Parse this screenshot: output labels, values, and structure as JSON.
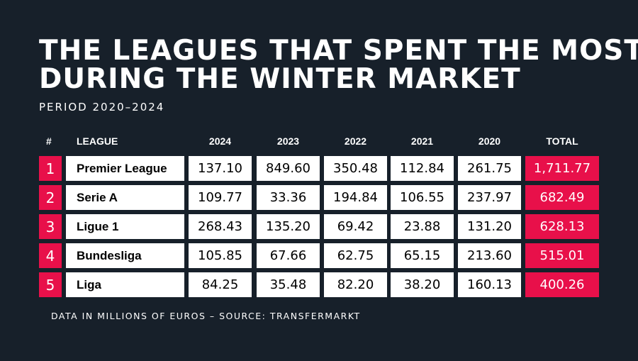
{
  "colors": {
    "background": "#17202a",
    "accent": "#e8104a",
    "cell": "#ffffff",
    "text_dark": "#000000",
    "text_light": "#ffffff"
  },
  "chart_data": {
    "type": "table",
    "title_lines": [
      "THE LEAGUES THAT SPENT THE MOST",
      "DURING THE WINTER MARKET"
    ],
    "subtitle": "PERIOD 2020–2024",
    "headers": [
      "#",
      "LEAGUE",
      "2024",
      "2023",
      "2022",
      "2021",
      "2020",
      "TOTAL"
    ],
    "rows": [
      {
        "rank": "1",
        "league": "Premier League",
        "values": [
          "137.10",
          "849.60",
          "350.48",
          "112.84",
          "261.75"
        ],
        "total": "1,711.77"
      },
      {
        "rank": "2",
        "league": "Serie A",
        "values": [
          "109.77",
          "33.36",
          "194.84",
          "106.55",
          "237.97"
        ],
        "total": "682.49"
      },
      {
        "rank": "3",
        "league": "Ligue 1",
        "values": [
          "268.43",
          "135.20",
          "69.42",
          "23.88",
          "131.20"
        ],
        "total": "628.13"
      },
      {
        "rank": "4",
        "league": "Bundesliga",
        "values": [
          "105.85",
          "67.66",
          "62.75",
          "65.15",
          "213.60"
        ],
        "total": "515.01"
      },
      {
        "rank": "5",
        "league": "Liga",
        "values": [
          "84.25",
          "35.48",
          "82.20",
          "38.20",
          "160.13"
        ],
        "total": "400.26"
      }
    ],
    "footnote": "DATA IN MILLIONS OF EUROS – SOURCE: TRANSFERMARKT"
  }
}
